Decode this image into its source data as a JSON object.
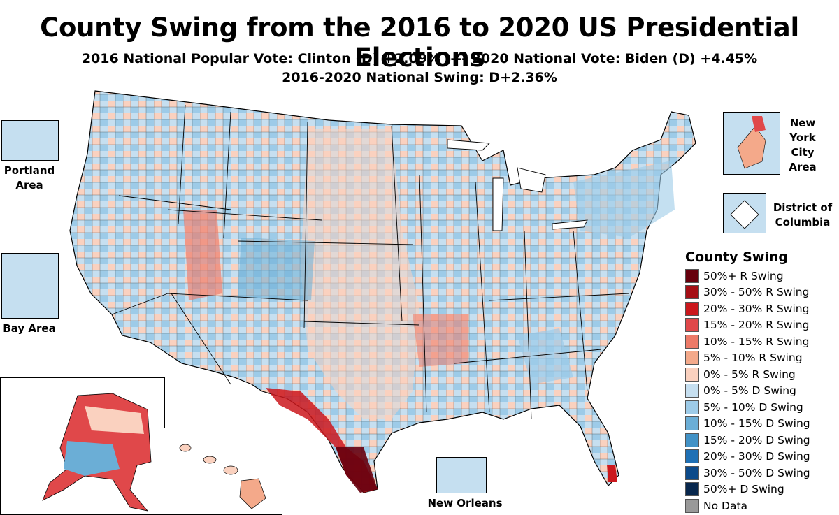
{
  "title": "County Swing from the 2016 to 2020 US Presidential Elections",
  "subtitle_line1": "2016 National Popular Vote: Clinton (D) +2.09% ---- 2020 National Vote: Biden (D) +4.45%",
  "subtitle_line2": "2016-2020 National Swing: D+2.36%",
  "insets": {
    "portland": "Portland Area",
    "bay": "Bay Area",
    "nyc": "New York City Area",
    "dc": "District of Columbia",
    "new_orleans": "New Orleans"
  },
  "legend": {
    "title": "County Swing",
    "items": [
      {
        "label": "50%+ R Swing",
        "color": "#67000d"
      },
      {
        "label": "30% - 50% R Swing",
        "color": "#a50f15"
      },
      {
        "label": "20% - 30% R Swing",
        "color": "#cb181d"
      },
      {
        "label": "15% - 20% R Swing",
        "color": "#e0484a"
      },
      {
        "label": "10% - 15% R Swing",
        "color": "#ec7a68"
      },
      {
        "label": "5% - 10% R Swing",
        "color": "#f4a98a"
      },
      {
        "label": "0% - 5% R Swing",
        "color": "#fad1bf"
      },
      {
        "label": "0% - 5% D Swing",
        "color": "#c6dff0"
      },
      {
        "label": "5% - 10% D Swing",
        "color": "#9dcbe8"
      },
      {
        "label": "10% - 15% D Swing",
        "color": "#6baed6"
      },
      {
        "label": "15% - 20% D Swing",
        "color": "#4292c6"
      },
      {
        "label": "20% - 30% D Swing",
        "color": "#1f70b5"
      },
      {
        "label": "30% - 50% D Swing",
        "color": "#0c4a8a"
      },
      {
        "label": "50%+ D Swing",
        "color": "#08274d"
      },
      {
        "label": "No Data",
        "color": "#999999"
      }
    ]
  }
}
